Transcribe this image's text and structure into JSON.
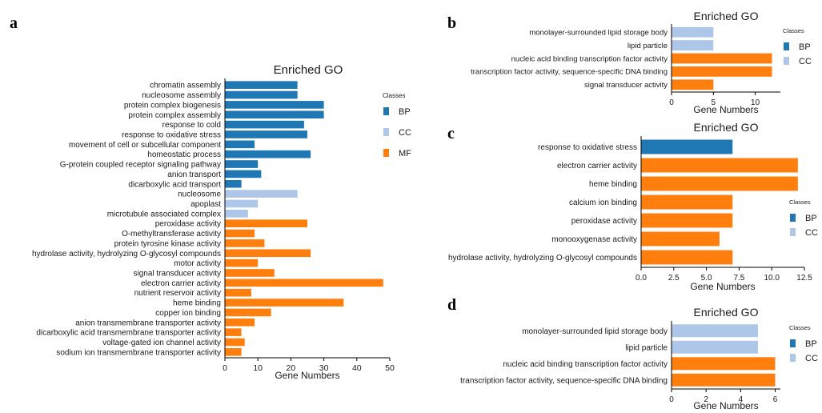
{
  "panels": {
    "a": "a",
    "b": "b",
    "c": "c",
    "d": "d"
  },
  "colors": {
    "BP": "#1f77b4",
    "CC": "#aec7e8",
    "MF": "#ff7f0e"
  },
  "chart_data": [
    {
      "id": "a",
      "type": "bar",
      "orientation": "horizontal",
      "title": "Enriched GO",
      "xlabel": "Gene Numbers",
      "ylabel": "",
      "xlim": [
        0,
        50
      ],
      "xticks": [
        "0",
        "10",
        "20",
        "30",
        "40",
        "50"
      ],
      "legend": {
        "title": "Classes",
        "position": "right",
        "entries": [
          "BP",
          "CC",
          "MF"
        ]
      },
      "categories": [
        "chromatin assembly",
        "nucleosome assembly",
        "protein complex biogenesis",
        "protein complex assembly",
        "response to cold",
        "response to oxidative stress",
        "movement of cell or subcellular component",
        "homeostatic process",
        "G-protein coupled receptor signaling pathway",
        "anion transport",
        "dicarboxylic acid transport",
        "nucleosome",
        "apoplast",
        "microtubule associated complex",
        "peroxidase activity",
        "O-methyltransferase activity",
        "protein tyrosine kinase activity",
        "hydrolase activity, hydrolyzing O-glycosyl compounds",
        "motor activity",
        "signal transducer activity",
        "electron carrier activity",
        "nutrient reservoir activity",
        "heme binding",
        "copper ion binding",
        "anion transmembrane transporter activity",
        "dicarboxylic acid transmembrane transporter activity",
        "voltage-gated ion channel activity",
        "sodium ion transmembrane transporter activity"
      ],
      "values": [
        22,
        22,
        30,
        30,
        24,
        25,
        9,
        26,
        10,
        11,
        5,
        22,
        10,
        7,
        25,
        9,
        12,
        26,
        10,
        15,
        48,
        8,
        36,
        14,
        9,
        5,
        6,
        5
      ],
      "classes": [
        "BP",
        "BP",
        "BP",
        "BP",
        "BP",
        "BP",
        "BP",
        "BP",
        "BP",
        "BP",
        "BP",
        "CC",
        "CC",
        "CC",
        "MF",
        "MF",
        "MF",
        "MF",
        "MF",
        "MF",
        "MF",
        "MF",
        "MF",
        "MF",
        "MF",
        "MF",
        "MF",
        "MF"
      ]
    },
    {
      "id": "b",
      "type": "bar",
      "orientation": "horizontal",
      "title": "Enriched GO",
      "xlabel": "Gene Numbers",
      "ylabel": "",
      "xlim": [
        0,
        13
      ],
      "xticks": [
        "0",
        "5",
        "10"
      ],
      "legend": {
        "title": "Classes",
        "position": "right",
        "entries": [
          "BP",
          "CC"
        ]
      },
      "categories": [
        "monolayer-surrounded lipid storage body",
        "lipid particle",
        "nucleic acid binding transcription factor activity",
        "transcription factor activity, sequence-specific DNA binding",
        "signal transducer activity"
      ],
      "values": [
        5,
        5,
        12,
        12,
        5
      ],
      "classes": [
        "CC",
        "CC",
        "MF",
        "MF",
        "MF"
      ]
    },
    {
      "id": "c",
      "type": "bar",
      "orientation": "horizontal",
      "title": "Enriched GO",
      "xlabel": "Gene Numbers",
      "ylabel": "",
      "xlim": [
        0,
        12.5
      ],
      "xticks": [
        "0.0",
        "2.5",
        "5.0",
        "7.5",
        "10.0",
        "12.5"
      ],
      "legend": {
        "title": "Classes",
        "position": "right",
        "entries": [
          "BP",
          "CC"
        ]
      },
      "categories": [
        "response to oxidative stress",
        "electron carrier activity",
        "heme binding",
        "calcium ion binding",
        "peroxidase activity",
        "monooxygenase activity",
        "hydrolase activity, hydrolyzing O-glycosyl compounds"
      ],
      "values": [
        7,
        12,
        12,
        7,
        7,
        6,
        7
      ],
      "classes": [
        "BP",
        "MF",
        "MF",
        "MF",
        "MF",
        "MF",
        "MF"
      ]
    },
    {
      "id": "d",
      "type": "bar",
      "orientation": "horizontal",
      "title": "Enriched GO",
      "xlabel": "Gene Numbers",
      "ylabel": "",
      "xlim": [
        0,
        6.3
      ],
      "xticks": [
        "0",
        "2",
        "4",
        "6"
      ],
      "legend": {
        "title": "Classes",
        "position": "right",
        "entries": [
          "BP",
          "CC"
        ]
      },
      "categories": [
        "monolayer-surrounded lipid storage body",
        "lipid particle",
        "nucleic acid binding transcription factor activity",
        "transcription factor activity, sequence-specific DNA binding"
      ],
      "values": [
        5,
        5,
        6,
        6
      ],
      "classes": [
        "CC",
        "CC",
        "MF",
        "MF"
      ]
    }
  ]
}
